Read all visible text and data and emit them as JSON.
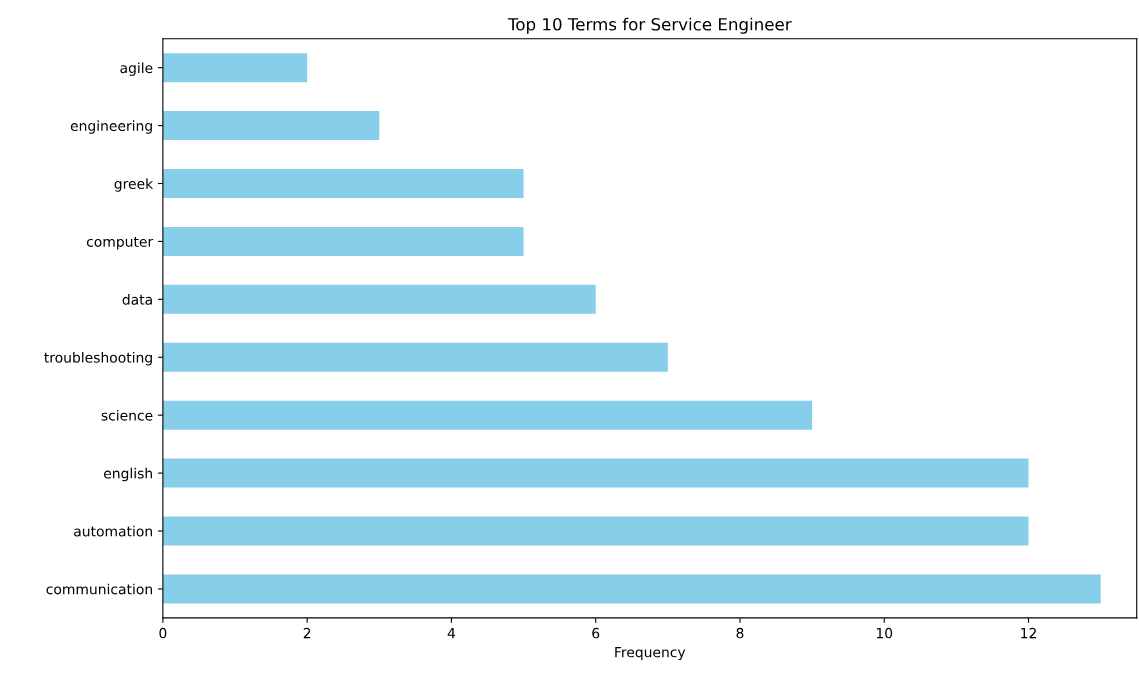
{
  "chart_data": {
    "type": "bar",
    "orientation": "horizontal",
    "title": "Top 10 Terms for Service Engineer",
    "xlabel": "Frequency",
    "categories": [
      "agile",
      "engineering",
      "greek",
      "computer",
      "data",
      "troubleshooting",
      "science",
      "english",
      "automation",
      "communication"
    ],
    "values": [
      2,
      3,
      5,
      5,
      6,
      7,
      9,
      12,
      12,
      13
    ],
    "color": "#87ceeb",
    "xlim": [
      0,
      13.5
    ],
    "xticks": [
      0,
      2,
      4,
      6,
      8,
      10,
      12
    ],
    "grid": false,
    "legend": false
  }
}
